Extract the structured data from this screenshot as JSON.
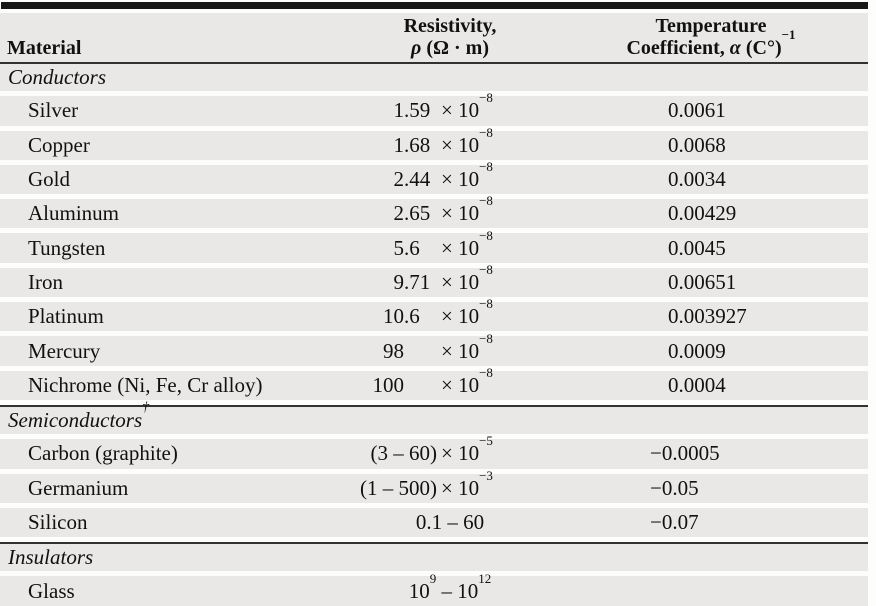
{
  "colors": {
    "row_band": "#e9e8e6",
    "row_gap": "#fdfdfc",
    "rule_dark": "#32312f",
    "top_bar": "#171716",
    "text": "#111110"
  },
  "table": {
    "header": {
      "material": "Material",
      "resistivity_line1": "Resistivity,",
      "resistivity_line2": [
        {
          "t": "i",
          "v": "ρ"
        },
        {
          "t": "text",
          "v": " (Ω · m)"
        }
      ],
      "temperature_line1": "Temperature",
      "temperature_line2": [
        {
          "t": "text",
          "v": "Coefficient, "
        },
        {
          "t": "i",
          "v": "α"
        },
        {
          "t": "text",
          "v": " (C°)"
        },
        {
          "t": "sup",
          "v": "−1"
        }
      ]
    },
    "rows": [
      {
        "type": "section",
        "label": "Conductors",
        "sup": ""
      },
      {
        "type": "data",
        "material": "Silver",
        "res": {
          "kind": "exp",
          "int": "1",
          "frac": ".59",
          "base": "× 10",
          "exp": "−8"
        },
        "temp": "0.0061"
      },
      {
        "type": "data",
        "material": "Copper",
        "res": {
          "kind": "exp",
          "int": "1",
          "frac": ".68",
          "base": "× 10",
          "exp": "−8"
        },
        "temp": "0.0068"
      },
      {
        "type": "data",
        "material": "Gold",
        "res": {
          "kind": "exp",
          "int": "2",
          "frac": ".44",
          "base": "× 10",
          "exp": "−8"
        },
        "temp": "0.0034"
      },
      {
        "type": "data",
        "material": "Aluminum",
        "res": {
          "kind": "exp",
          "int": "2",
          "frac": ".65",
          "base": "× 10",
          "exp": "−8"
        },
        "temp": "0.00429"
      },
      {
        "type": "data",
        "material": "Tungsten",
        "res": {
          "kind": "exp",
          "int": "5",
          "frac": ".6",
          "base": "× 10",
          "exp": "−8"
        },
        "temp": "0.0045"
      },
      {
        "type": "data",
        "material": "Iron",
        "res": {
          "kind": "exp",
          "int": "9",
          "frac": ".71",
          "base": "× 10",
          "exp": "−8"
        },
        "temp": "0.00651"
      },
      {
        "type": "data",
        "material": "Platinum",
        "res": {
          "kind": "exp",
          "int": "10",
          "frac": ".6",
          "base": "× 10",
          "exp": "−8"
        },
        "temp": "0.003927"
      },
      {
        "type": "data",
        "material": "Mercury",
        "res": {
          "kind": "exp",
          "int": "98",
          "frac": "",
          "base": "× 10",
          "exp": "−8"
        },
        "temp": "0.0009"
      },
      {
        "type": "data",
        "material": "Nichrome (Ni, Fe, Cr alloy)",
        "res": {
          "kind": "exp",
          "int": "100",
          "frac": "",
          "base": "× 10",
          "exp": "−8"
        },
        "temp": "0.0004"
      },
      {
        "type": "section",
        "label": "Semiconductors",
        "sup": "†"
      },
      {
        "type": "data",
        "material": "Carbon (graphite)",
        "res": {
          "kind": "range-exp",
          "range": "(3 – 60)",
          "base": "× 10",
          "exp": "−5"
        },
        "temp": "−0.0005"
      },
      {
        "type": "data",
        "material": "Germanium",
        "res": {
          "kind": "range-exp",
          "range": "(1 – 500)",
          "base": "× 10",
          "exp": "−3"
        },
        "temp": "−0.05"
      },
      {
        "type": "data",
        "material": "Silicon",
        "res": {
          "kind": "center",
          "segments": [
            {
              "t": "text",
              "v": "0.1 – 60"
            }
          ]
        },
        "temp": "−0.07"
      },
      {
        "type": "section",
        "label": "Insulators",
        "sup": ""
      },
      {
        "type": "data",
        "material": "Glass",
        "res": {
          "kind": "center",
          "segments": [
            {
              "t": "text",
              "v": "10"
            },
            {
              "t": "sup",
              "v": "9"
            },
            {
              "t": "text",
              "v": " – 10"
            },
            {
              "t": "sup",
              "v": "12"
            }
          ]
        },
        "temp": ""
      }
    ]
  }
}
